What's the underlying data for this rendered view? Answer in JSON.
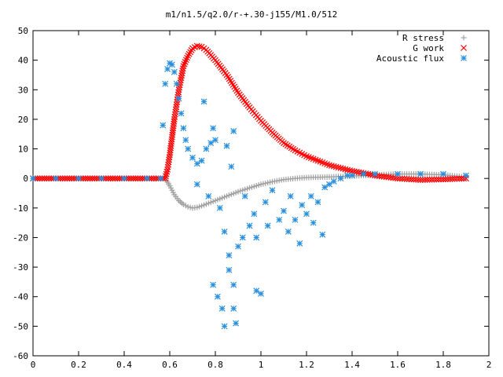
{
  "chart_data": {
    "type": "scatter",
    "title": "m1/n1.5/q2.0/r-+.30-j155/M1.0/512",
    "xlabel": "",
    "ylabel": "",
    "xlim": [
      0,
      2
    ],
    "ylim": [
      -60,
      50
    ],
    "xticks": [
      "0",
      "0.2",
      "0.4",
      "0.6",
      "0.8",
      "1",
      "1.2",
      "1.4",
      "1.6",
      "1.8",
      "2"
    ],
    "yticks": [
      "-60",
      "-50",
      "-40",
      "-30",
      "-20",
      "-10",
      "0",
      "10",
      "20",
      "30",
      "40",
      "50"
    ],
    "grid": false,
    "legend_position": "top-right",
    "series": [
      {
        "name": "R stress",
        "marker": "plus",
        "color": "#a0a0a0",
        "points": [
          [
            0.0,
            0
          ],
          [
            0.1,
            0
          ],
          [
            0.2,
            0
          ],
          [
            0.3,
            0
          ],
          [
            0.4,
            0
          ],
          [
            0.5,
            0
          ],
          [
            0.58,
            0
          ],
          [
            0.6,
            -2.5
          ],
          [
            0.62,
            -5.5
          ],
          [
            0.64,
            -7.5
          ],
          [
            0.66,
            -8.8
          ],
          [
            0.68,
            -9.6
          ],
          [
            0.7,
            -10
          ],
          [
            0.72,
            -9.8
          ],
          [
            0.75,
            -9
          ],
          [
            0.8,
            -7.5
          ],
          [
            0.85,
            -6
          ],
          [
            0.9,
            -4.5
          ],
          [
            0.95,
            -3.2
          ],
          [
            1.0,
            -2
          ],
          [
            1.05,
            -1.1
          ],
          [
            1.1,
            -0.4
          ],
          [
            1.15,
            0
          ],
          [
            1.2,
            0.3
          ],
          [
            1.3,
            0.5
          ],
          [
            1.4,
            0.8
          ],
          [
            1.5,
            1.2
          ],
          [
            1.6,
            1.5
          ],
          [
            1.7,
            1.5
          ],
          [
            1.8,
            1.2
          ],
          [
            1.9,
            0.5
          ]
        ]
      },
      {
        "name": "G work",
        "marker": "cross",
        "color": "#ff0000",
        "points": [
          [
            0.0,
            0
          ],
          [
            0.1,
            0
          ],
          [
            0.2,
            0
          ],
          [
            0.3,
            0
          ],
          [
            0.4,
            0
          ],
          [
            0.5,
            0
          ],
          [
            0.58,
            0
          ],
          [
            0.59,
            3
          ],
          [
            0.6,
            8
          ],
          [
            0.61,
            14
          ],
          [
            0.62,
            20
          ],
          [
            0.63,
            25
          ],
          [
            0.64,
            30
          ],
          [
            0.65,
            34
          ],
          [
            0.66,
            38
          ],
          [
            0.68,
            41.5
          ],
          [
            0.7,
            44
          ],
          [
            0.72,
            44.8
          ],
          [
            0.74,
            44.5
          ],
          [
            0.76,
            43.5
          ],
          [
            0.8,
            40
          ],
          [
            0.85,
            35
          ],
          [
            0.9,
            29
          ],
          [
            0.95,
            24
          ],
          [
            1.0,
            19.5
          ],
          [
            1.05,
            15.5
          ],
          [
            1.1,
            12
          ],
          [
            1.15,
            9.5
          ],
          [
            1.2,
            7.5
          ],
          [
            1.25,
            6
          ],
          [
            1.3,
            4.5
          ],
          [
            1.35,
            3.5
          ],
          [
            1.4,
            2.5
          ],
          [
            1.45,
            1.8
          ],
          [
            1.5,
            1
          ],
          [
            1.55,
            0.5
          ],
          [
            1.6,
            0
          ],
          [
            1.7,
            -0.5
          ],
          [
            1.8,
            -0.3
          ],
          [
            1.9,
            0
          ]
        ]
      },
      {
        "name": "Acoustic flux",
        "marker": "star",
        "color": "#2a8fdc",
        "points": [
          [
            0.0,
            0
          ],
          [
            0.1,
            0
          ],
          [
            0.2,
            0
          ],
          [
            0.3,
            0
          ],
          [
            0.4,
            0
          ],
          [
            0.5,
            0
          ],
          [
            0.56,
            0
          ],
          [
            0.57,
            18
          ],
          [
            0.58,
            32
          ],
          [
            0.59,
            37
          ],
          [
            0.6,
            39
          ],
          [
            0.61,
            38.5
          ],
          [
            0.62,
            36
          ],
          [
            0.63,
            32
          ],
          [
            0.64,
            27
          ],
          [
            0.65,
            22
          ],
          [
            0.66,
            17
          ],
          [
            0.67,
            13
          ],
          [
            0.68,
            10
          ],
          [
            0.7,
            7
          ],
          [
            0.72,
            5
          ],
          [
            0.74,
            6
          ],
          [
            0.76,
            10
          ],
          [
            0.78,
            12
          ],
          [
            0.8,
            13
          ],
          [
            0.75,
            26
          ],
          [
            0.79,
            17
          ],
          [
            0.85,
            11
          ],
          [
            0.87,
            4
          ],
          [
            0.88,
            16
          ],
          [
            0.72,
            -2
          ],
          [
            0.77,
            -6
          ],
          [
            0.82,
            -10
          ],
          [
            0.84,
            -18
          ],
          [
            0.86,
            -26
          ],
          [
            0.83,
            -44
          ],
          [
            0.84,
            -50
          ],
          [
            0.86,
            -31
          ],
          [
            0.88,
            -36
          ],
          [
            0.9,
            -23
          ],
          [
            0.79,
            -36
          ],
          [
            0.81,
            -40
          ],
          [
            0.88,
            -44
          ],
          [
            0.89,
            -49
          ],
          [
            0.92,
            -20
          ],
          [
            0.95,
            -16
          ],
          [
            0.98,
            -38
          ],
          [
            1.0,
            -39
          ],
          [
            0.93,
            -6
          ],
          [
            0.97,
            -12
          ],
          [
            1.02,
            -8
          ],
          [
            1.05,
            -4
          ],
          [
            1.08,
            -14
          ],
          [
            1.1,
            -11
          ],
          [
            1.12,
            -18
          ],
          [
            1.15,
            -14
          ],
          [
            1.18,
            -9
          ],
          [
            1.2,
            -12
          ],
          [
            1.22,
            -6
          ],
          [
            1.25,
            -8
          ],
          [
            1.28,
            -3
          ],
          [
            1.3,
            -2
          ],
          [
            1.32,
            -1
          ],
          [
            1.35,
            0
          ],
          [
            1.38,
            1
          ],
          [
            1.4,
            1
          ],
          [
            0.98,
            -20
          ],
          [
            1.03,
            -16
          ],
          [
            1.13,
            -6
          ],
          [
            1.17,
            -22
          ],
          [
            1.23,
            -15
          ],
          [
            1.27,
            -19
          ],
          [
            1.45,
            1.5
          ],
          [
            1.5,
            1.5
          ],
          [
            1.6,
            1.5
          ],
          [
            1.7,
            1.5
          ],
          [
            1.8,
            1.5
          ],
          [
            1.9,
            1
          ]
        ]
      }
    ]
  }
}
